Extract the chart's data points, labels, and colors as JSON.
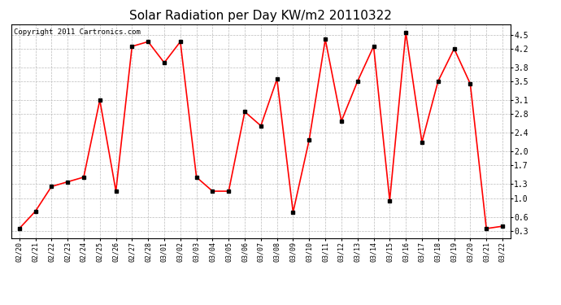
{
  "title": "Solar Radiation per Day KW/m2 20110322",
  "copyright_text": "Copyright 2011 Cartronics.com",
  "dates": [
    "02/20",
    "02/21",
    "02/22",
    "02/23",
    "02/24",
    "02/25",
    "02/26",
    "02/27",
    "02/28",
    "03/01",
    "03/02",
    "03/03",
    "03/04",
    "03/05",
    "03/06",
    "03/07",
    "03/08",
    "03/09",
    "03/10",
    "03/11",
    "03/12",
    "03/13",
    "03/14",
    "03/15",
    "03/16",
    "03/17",
    "03/18",
    "03/19",
    "03/20",
    "03/21",
    "03/22"
  ],
  "values": [
    0.35,
    0.72,
    1.25,
    1.35,
    1.45,
    3.1,
    1.15,
    4.25,
    4.35,
    3.9,
    4.35,
    1.45,
    1.15,
    1.15,
    2.85,
    2.55,
    3.55,
    0.7,
    2.25,
    4.4,
    2.65,
    3.5,
    4.25,
    0.95,
    4.55,
    2.2,
    3.5,
    4.2,
    3.45,
    0.35,
    0.4
  ],
  "line_color": "#ff0000",
  "marker_color": "#000000",
  "bg_color": "#ffffff",
  "grid_color": "#bbbbbb",
  "yticks": [
    0.3,
    0.6,
    1.0,
    1.3,
    1.7,
    2.0,
    2.4,
    2.8,
    3.1,
    3.5,
    3.8,
    4.2,
    4.5
  ],
  "ylim": [
    0.15,
    4.72
  ],
  "title_fontsize": 11,
  "copyright_fontsize": 6.5,
  "tick_fontsize": 6
}
